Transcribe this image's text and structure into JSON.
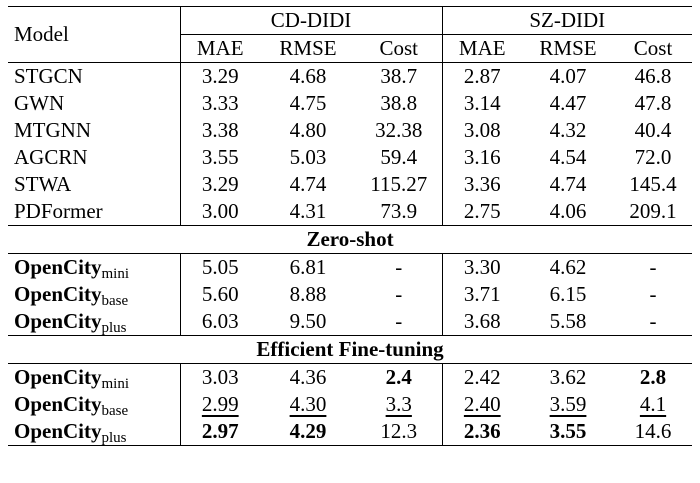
{
  "header": {
    "model": "Model",
    "group1": "CD-DIDI",
    "group2": "SZ-DIDI",
    "metrics": [
      "MAE",
      "RMSE",
      "Cost",
      "MAE",
      "RMSE",
      "Cost"
    ]
  },
  "baselines": [
    {
      "model": "STGCN",
      "cells": [
        "3.29",
        "4.68",
        "38.7",
        "2.87",
        "4.07",
        "46.8"
      ]
    },
    {
      "model": "GWN",
      "cells": [
        "3.33",
        "4.75",
        "38.8",
        "3.14",
        "4.47",
        "47.8"
      ]
    },
    {
      "model": "MTGNN",
      "cells": [
        "3.38",
        "4.80",
        "32.38",
        "3.08",
        "4.32",
        "40.4"
      ]
    },
    {
      "model": "AGCRN",
      "cells": [
        "3.55",
        "5.03",
        "59.4",
        "3.16",
        "4.54",
        "72.0"
      ]
    },
    {
      "model": "STWA",
      "cells": [
        "3.29",
        "4.74",
        "115.27",
        "3.36",
        "4.74",
        "145.4"
      ]
    },
    {
      "model": "PDFormer",
      "cells": [
        "3.00",
        "4.31",
        "73.9",
        "2.75",
        "4.06",
        "209.1"
      ]
    }
  ],
  "zero_shot": {
    "title": "Zero-shot",
    "rows": [
      {
        "base": "OpenCity",
        "sub": "mini",
        "cells": [
          "5.05",
          "6.81",
          "-",
          "3.30",
          "4.62",
          "-"
        ]
      },
      {
        "base": "OpenCity",
        "sub": "base",
        "cells": [
          "5.60",
          "8.88",
          "-",
          "3.71",
          "6.15",
          "-"
        ]
      },
      {
        "base": "OpenCity",
        "sub": "plus",
        "cells": [
          "6.03",
          "9.50",
          "-",
          "3.68",
          "5.58",
          "-"
        ]
      }
    ]
  },
  "fine_tuning": {
    "title": "Efficient Fine-tuning",
    "rows": [
      {
        "base": "OpenCity",
        "sub": "mini",
        "cells": [
          "3.03",
          "4.36",
          "2.4",
          "2.42",
          "3.62",
          "2.8"
        ],
        "styles": [
          "",
          "",
          "b",
          "",
          "",
          "b"
        ]
      },
      {
        "base": "OpenCity",
        "sub": "base",
        "cells": [
          "2.99",
          "4.30",
          "3.3",
          "2.40",
          "3.59",
          "4.1"
        ],
        "styles": [
          "u",
          "u",
          "u",
          "u",
          "u",
          "u"
        ]
      },
      {
        "base": "OpenCity",
        "sub": "plus",
        "cells": [
          "2.97",
          "4.29",
          "12.3",
          "2.36",
          "3.55",
          "14.6"
        ],
        "styles": [
          "b",
          "b",
          "",
          "b",
          "b",
          ""
        ]
      }
    ]
  }
}
